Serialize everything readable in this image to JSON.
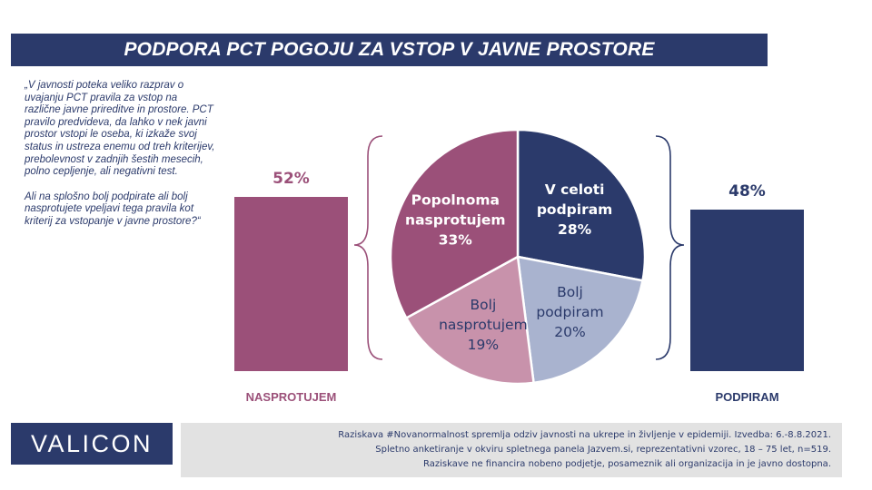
{
  "header": {
    "title": "PODPORA PCT POGOJU ZA VSTOP V JAVNE PROSTORE"
  },
  "question": {
    "paragraph1": "„V javnosti poteka veliko razprav o uvajanju PCT pravila za vstop na različne javne prireditve in prostore. PCT pravilo predvideva, da lahko v nek javni prostor vstopi le oseba, ki izkaže svoj status in ustreza enemu od treh kriterijev, prebolevnost v zadnjih šestih mesecih, polno cepljenje, ali negativni test.",
    "paragraph2": "Ali na splošno bolj  podpirate ali bolj nasprotujete vpeljavi tega pravila kot kriterij za vstopanje v javne prostore?“"
  },
  "chart_data": [
    {
      "type": "bar",
      "categories": [
        "NASPROTUJEM",
        "PODPIRAM"
      ],
      "values": [
        52,
        48
      ],
      "value_labels": [
        "52%",
        "48%"
      ],
      "colors": [
        "#9b5079",
        "#2b3a6b"
      ],
      "ylim": [
        0,
        60
      ],
      "grid": false
    },
    {
      "type": "pie",
      "slices": [
        {
          "name": "V celoti podpiram",
          "value": 28,
          "label": "28%",
          "label_lines": [
            "V celoti",
            "podpiram"
          ],
          "color": "#2b3a6b",
          "text_color": "#ffffff"
        },
        {
          "name": "Bolj podpiram",
          "value": 20,
          "label": "20%",
          "label_lines": [
            "Bolj",
            "podpiram"
          ],
          "color": "#a9b3cf",
          "text_color": "#2b3a6b"
        },
        {
          "name": "Bolj nasprotujem",
          "value": 19,
          "label": "19%",
          "label_lines": [
            "Bolj",
            "nasprotujem"
          ],
          "color": "#c892ab",
          "text_color": "#2b3a6b"
        },
        {
          "name": "Popolnoma nasprotujem",
          "value": 33,
          "label": "33%",
          "label_lines": [
            "Popolnoma",
            "nasprotujem"
          ],
          "color": "#9b5079",
          "text_color": "#ffffff"
        }
      ],
      "start": "12 o'clock",
      "direction": "clockwise"
    }
  ],
  "brand": {
    "logo": "VALICON"
  },
  "footer": {
    "line1": "Raziskava #Novanormalnost spremlja odziv javnosti na ukrepe in življenje v epidemiji. Izvedba: 6.-8.8.2021.",
    "line2": "Spletno anketiranje v okviru spletnega panela Jazvem.si, reprezentativni vzorec, 18 – 75 let, n=519.",
    "line3": "Raziskave ne financira nobeno podjetje, posameznik ali organizacija in je javno dostopna."
  }
}
